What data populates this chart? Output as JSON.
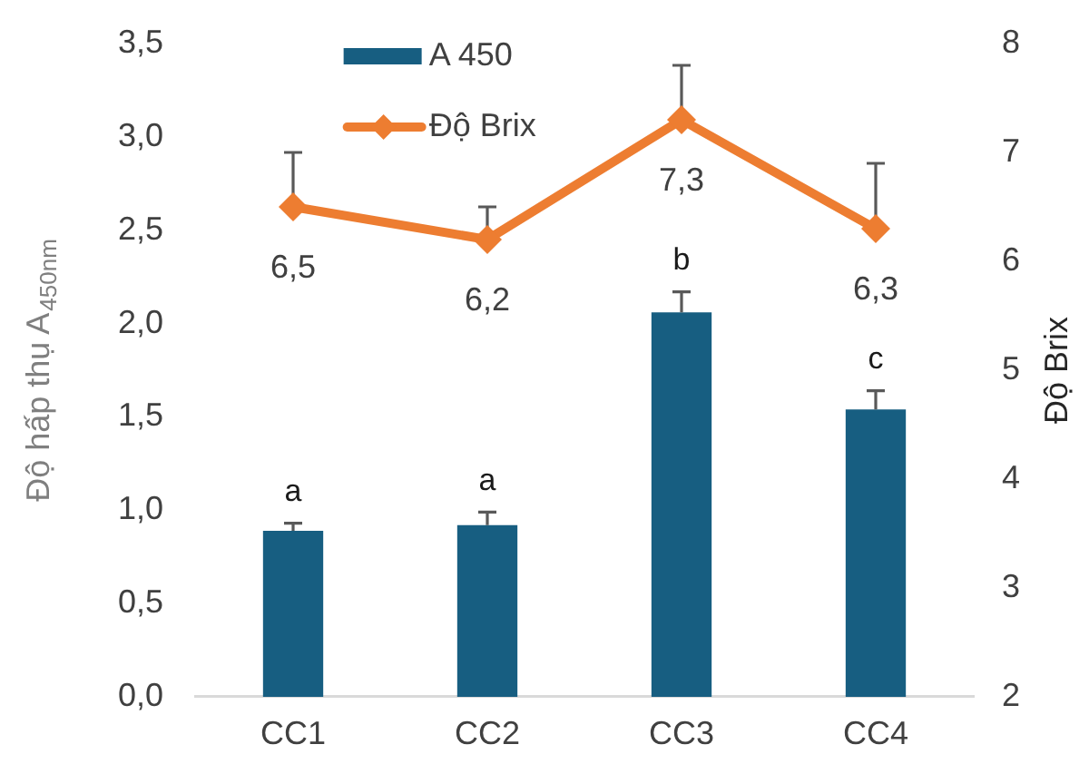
{
  "chart_data": {
    "type": "bar",
    "categories": [
      "CC1",
      "CC2",
      "CC3",
      "CC4"
    ],
    "ylabel": "Độ hấp thụ A$_{450nm}$",
    "y2label": "Độ Brix",
    "series": [
      {
        "name": "A 450",
        "color": "#175e81",
        "values": [
          0.89,
          0.92,
          2.06,
          1.54
        ],
        "errors": [
          [
            0.89,
            0.93
          ],
          [
            0.92,
            0.99
          ],
          [
            2.06,
            2.17
          ],
          [
            1.54,
            1.64
          ]
        ]
      },
      {
        "name": "Độ Brix",
        "type": "line",
        "axis": "y2",
        "color": "#ed7d31",
        "values": [
          6.5,
          6.2,
          7.3,
          6.3
        ],
        "errors": [
          [
            6.5,
            7.0
          ],
          [
            6.2,
            6.5
          ],
          [
            7.3,
            7.8
          ],
          [
            6.3,
            6.9
          ]
        ],
        "value_labels": [
          "6,5",
          "6,2",
          "7,3",
          "6,3"
        ]
      }
    ],
    "ylim": [
      0,
      3.5
    ],
    "yticks": [
      {
        "value": 0,
        "label": "0,0"
      },
      {
        "value": 0.5,
        "label": "0,5"
      },
      {
        "value": 1,
        "label": "1,0"
      },
      {
        "value": 1.5,
        "label": "1,5"
      },
      {
        "value": 2,
        "label": "2,0"
      },
      {
        "value": 2.5,
        "label": "2,5"
      },
      {
        "value": 3,
        "label": "3,0"
      },
      {
        "value": 3.5,
        "label": "3,5"
      }
    ],
    "y2lim": [
      2,
      8
    ],
    "y2ticks": [
      2,
      3,
      4,
      5,
      6,
      7,
      8
    ],
    "grid": false,
    "legend": "top left",
    "marker": "diamond",
    "line_style": "solid",
    "annotations": [
      {
        "text": "a",
        "x": "CC1",
        "y": 0.89
      },
      {
        "text": "a",
        "x": "CC2",
        "y": 0.92
      },
      {
        "text": "b",
        "x": "CC3",
        "y": 2.06
      },
      {
        "text": "c",
        "x": "CC4",
        "y": 1.54
      }
    ]
  }
}
